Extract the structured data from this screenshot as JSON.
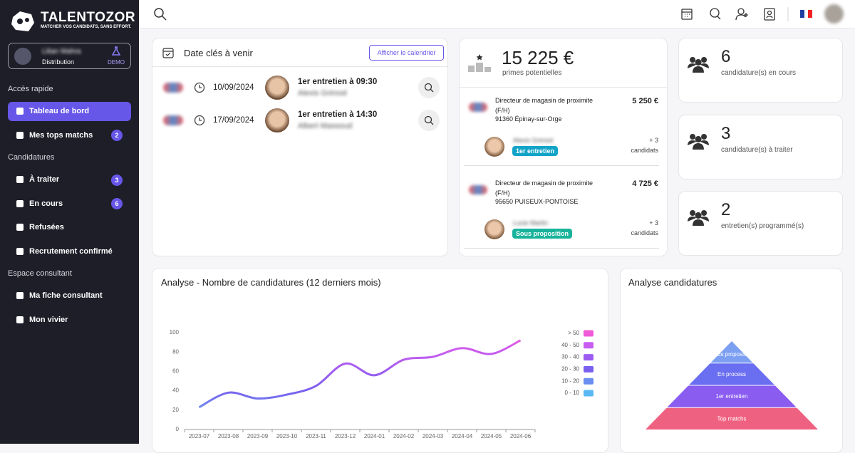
{
  "brand": {
    "name": "TALENTOZOR",
    "tagline": "MATCHER VOS CANDIDATS, SANS EFFORT."
  },
  "user": {
    "name": "Lilian Mahra",
    "role": "Distribution",
    "badge": "DEMO"
  },
  "sidebar": [
    {
      "title": "Accès rapide",
      "items": [
        {
          "label": "Tableau de bord",
          "active": true
        },
        {
          "label": "Mes tops matchs",
          "badge": 2
        }
      ]
    },
    {
      "title": "Candidatures",
      "items": [
        {
          "label": "À traiter",
          "badge": 3
        },
        {
          "label": "En cours",
          "badge": 6
        },
        {
          "label": "Refusées"
        },
        {
          "label": "Recrutement confirmé"
        }
      ]
    },
    {
      "title": "Espace consultant",
      "items": [
        {
          "label": "Ma fiche consultant"
        },
        {
          "label": "Mon vivier"
        }
      ]
    }
  ],
  "upcoming": {
    "title": "Date clés à venir",
    "button": "Afficher le calendrier",
    "events": [
      {
        "date": "10/09/2024",
        "title": "1er entretien à 09:30",
        "name": "Alexis Grimod"
      },
      {
        "date": "17/09/2024",
        "title": "1er entretien à 14:30",
        "name": "Albert Massoud"
      }
    ]
  },
  "bonus": {
    "amount": "15 225 €",
    "label": "primes potentielles",
    "jobs": [
      {
        "title": "Directeur de magasin de proximite (F/H)",
        "location": "91360 Épinay-sur-Orge",
        "amount": "5 250 €",
        "candidate": "Alexis Grimod",
        "status": "1er entretien",
        "status_color": "#12a4c8",
        "extra": "+ 3",
        "extra_label": "candidats"
      },
      {
        "title": "Directeur de magasin de proximite (F/H)",
        "location": "95650 PUISEUX-PONTOISE",
        "amount": "4 725 €",
        "candidate": "Lucie Martin",
        "status": "Sous proposition",
        "status_color": "#19b39b",
        "extra": "+ 3",
        "extra_label": "candidats"
      }
    ]
  },
  "stats": [
    {
      "value": 6,
      "label": "candidature(s) en cours"
    },
    {
      "value": 3,
      "label": "candidature(s) à traiter"
    },
    {
      "value": 2,
      "label": "entretien(s) programmé(s)"
    }
  ],
  "chart_data": {
    "type": "line",
    "title": "Analyse - Nombre de candidatures (12 derniers mois)",
    "categories": [
      "2023-07",
      "2023-08",
      "2023-09",
      "2023-10",
      "2023-11",
      "2023-12",
      "2024-01",
      "2024-02",
      "2024-03",
      "2024-04",
      "2024-05",
      "2024-06"
    ],
    "values": [
      23,
      38,
      32,
      36,
      45,
      68,
      56,
      72,
      75,
      84,
      78,
      92
    ],
    "ylim": [
      0,
      100
    ],
    "yticks": [
      0,
      20,
      40,
      60,
      80,
      100
    ],
    "grid": false,
    "pieces": [
      {
        "label": "> 50",
        "color": "#f05bd8"
      },
      {
        "label": "40 - 50",
        "color": "#c85cf0"
      },
      {
        "label": "30 - 40",
        "color": "#9d5cf0"
      },
      {
        "label": "20 - 30",
        "color": "#7a60ee"
      },
      {
        "label": "10 - 20",
        "color": "#6b8ff0"
      },
      {
        "label": "0 - 10",
        "color": "#5ab8f2"
      }
    ]
  },
  "funnel": {
    "title": "Analyse candidatures",
    "stages": [
      {
        "label": "Sous proposition",
        "color": "#7c9ff2"
      },
      {
        "label": "En process",
        "color": "#6a6ef0"
      },
      {
        "label": "1er entretien",
        "color": "#8a5cf0"
      },
      {
        "label": "Top matchs",
        "color": "#ef6180"
      }
    ]
  }
}
